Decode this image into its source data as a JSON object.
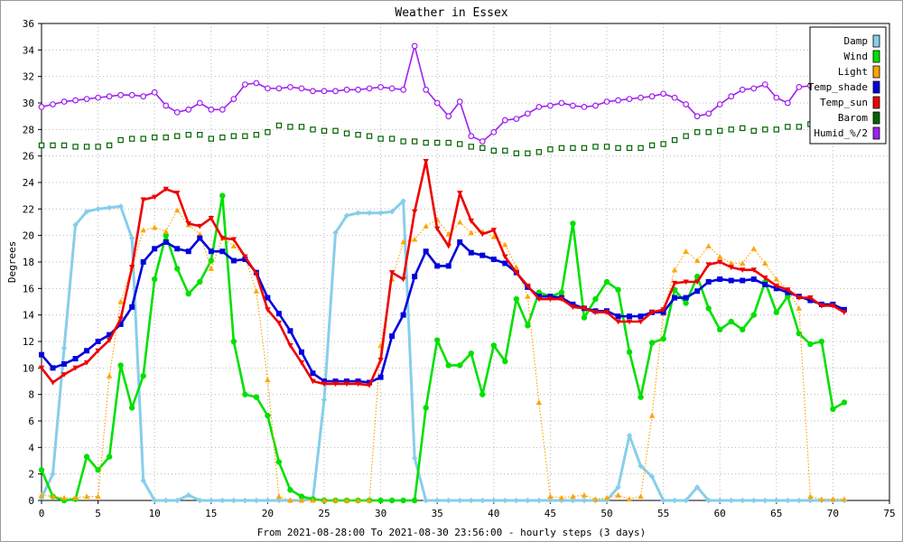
{
  "chart_data": {
    "type": "line",
    "title": "Weather in Essex",
    "xlabel": "From 2021-08-28:00 To 2021-08-30 23:56:00 - hourly steps (3 days)",
    "ylabel": "Degrees",
    "xlim": [
      0,
      75
    ],
    "ylim": [
      0,
      36
    ],
    "xticks": [
      0,
      5,
      10,
      15,
      20,
      25,
      30,
      35,
      40,
      45,
      50,
      55,
      60,
      65,
      70,
      75
    ],
    "yticks": [
      0,
      2,
      4,
      6,
      8,
      10,
      12,
      14,
      16,
      18,
      20,
      22,
      24,
      26,
      28,
      30,
      32,
      34,
      36
    ],
    "grid": true,
    "legend_position": "top-right",
    "series": [
      {
        "name": "Damp",
        "color": "#87ceeb",
        "marker": "diamond",
        "values": [
          0.2,
          2,
          11.5,
          20.8,
          21.8,
          22,
          22.1,
          22.2,
          19.8,
          1.5,
          0,
          0,
          0,
          0.4,
          0,
          0,
          0,
          0,
          0,
          0,
          0,
          0,
          0,
          0,
          0.1,
          7.6,
          20.2,
          21.5,
          21.7,
          21.7,
          21.7,
          21.8,
          22.6,
          3.2,
          0,
          0,
          0,
          0,
          0,
          0,
          0,
          0,
          0,
          0,
          0,
          0,
          0,
          0,
          0,
          0,
          0,
          1,
          4.9,
          2.6,
          1.8,
          0,
          0,
          0,
          1,
          0,
          0,
          0,
          0,
          0,
          0,
          0,
          0,
          0,
          0,
          0,
          0,
          0
        ]
      },
      {
        "name": "Wind",
        "color": "#00e000",
        "marker": "circle",
        "values": [
          2.3,
          0.3,
          0,
          0.1,
          3.3,
          2.3,
          3.3,
          10.2,
          7,
          9.4,
          16.7,
          20,
          17.5,
          15.6,
          16.5,
          18.1,
          23,
          12,
          8,
          7.8,
          6.4,
          2.9,
          0.8,
          0.3,
          0.1,
          0,
          0,
          0,
          0,
          0,
          0,
          0,
          0,
          0,
          7,
          12.1,
          10.2,
          10.2,
          11.1,
          8,
          11.7,
          10.5,
          15.2,
          13.2,
          15.7,
          15.4,
          15.7,
          20.9,
          13.8,
          15.2,
          16.5,
          15.9,
          11.2,
          7.8,
          11.9,
          12.2,
          15.9,
          14.9,
          16.9,
          14.5,
          12.9,
          13.5,
          12.9,
          14,
          16.5,
          14.2,
          15.4,
          12.6,
          11.8,
          12,
          6.9,
          7.4
        ]
      },
      {
        "name": "Light",
        "color": "#ffa500",
        "marker": "triangle",
        "values": [
          0.4,
          0.3,
          0.2,
          0.2,
          0.3,
          0.3,
          9.4,
          15,
          17.6,
          20.4,
          20.6,
          20.3,
          21.9,
          20.8,
          20.1,
          17.5,
          19.8,
          19.2,
          18.4,
          15.8,
          9.1,
          0.3,
          0,
          0,
          0,
          0,
          0,
          0,
          0,
          0,
          11.7,
          16.7,
          19.5,
          19.7,
          20.7,
          21.2,
          20.1,
          21,
          20.2,
          20.3,
          19.9,
          19.3,
          17.6,
          15.4,
          7.4,
          0.3,
          0.2,
          0.3,
          0.4,
          0.1,
          0.2,
          0.4,
          0.1,
          0.3,
          6.4,
          14.1,
          17.4,
          18.8,
          18.1,
          19.2,
          18.4,
          17.9,
          17.9,
          19,
          17.9,
          16.7,
          15.9,
          14.5,
          0.3,
          0.1,
          0.1,
          0.1
        ]
      },
      {
        "name": "Temp_shade",
        "color": "#0000dd",
        "marker": "square",
        "values": [
          11,
          10,
          10.3,
          10.7,
          11.3,
          12,
          12.5,
          13.3,
          14.6,
          18,
          19,
          19.5,
          19,
          18.8,
          19.8,
          18.8,
          18.8,
          18.1,
          18.2,
          17.2,
          15.3,
          14.1,
          12.8,
          11.2,
          9.6,
          9,
          9,
          9,
          9,
          8.9,
          9.3,
          12.4,
          14,
          16.9,
          18.8,
          17.7,
          17.7,
          19.5,
          18.7,
          18.5,
          18.2,
          17.9,
          17.2,
          16.1,
          15.4,
          15.4,
          15.3,
          14.8,
          14.5,
          14.3,
          14.3,
          13.9,
          13.9,
          13.9,
          14.2,
          14.2,
          15.3,
          15.3,
          15.8,
          16.5,
          16.7,
          16.6,
          16.6,
          16.7,
          16.3,
          16,
          15.7,
          15.4,
          15.1,
          14.8,
          14.8,
          14.4
        ]
      },
      {
        "name": "Temp_sun",
        "color": "#ee0000",
        "marker": "triangle-down",
        "values": [
          10,
          8.9,
          9.5,
          10,
          10.4,
          11.3,
          12.1,
          13.7,
          17.6,
          22.7,
          22.9,
          23.5,
          23.2,
          20.9,
          20.7,
          21.3,
          19.8,
          19.7,
          18.4,
          17.1,
          14.4,
          13.4,
          11.7,
          10.4,
          9,
          8.8,
          8.8,
          8.8,
          8.8,
          8.7,
          10.6,
          17.2,
          16.7,
          21.8,
          25.6,
          20.5,
          19.2,
          23.2,
          21.1,
          20.1,
          20.4,
          18.4,
          17.2,
          16.2,
          15.2,
          15.2,
          15.2,
          14.6,
          14.5,
          14.2,
          14.2,
          13.5,
          13.5,
          13.5,
          14.2,
          14.4,
          16.4,
          16.5,
          16.5,
          17.8,
          18,
          17.6,
          17.4,
          17.4,
          16.8,
          16.2,
          15.9,
          15.3,
          15.3,
          14.7,
          14.7,
          14.2
        ]
      },
      {
        "name": "Barom",
        "color": "#006400",
        "marker": "square-open",
        "values": [
          26.8,
          26.8,
          26.8,
          26.7,
          26.7,
          26.7,
          26.8,
          27.2,
          27.3,
          27.3,
          27.4,
          27.4,
          27.5,
          27.6,
          27.6,
          27.3,
          27.4,
          27.5,
          27.5,
          27.6,
          27.8,
          28.3,
          28.2,
          28.2,
          28,
          27.9,
          27.9,
          27.7,
          27.6,
          27.5,
          27.3,
          27.3,
          27.1,
          27.1,
          27,
          27,
          27,
          26.9,
          26.7,
          26.6,
          26.4,
          26.4,
          26.2,
          26.2,
          26.3,
          26.5,
          26.6,
          26.6,
          26.6,
          26.7,
          26.7,
          26.6,
          26.6,
          26.6,
          26.8,
          26.9,
          27.2,
          27.5,
          27.8,
          27.8,
          27.9,
          28,
          28.1,
          27.9,
          28,
          28,
          28.2,
          28.2,
          28.4,
          28.4,
          28.4,
          28.4
        ]
      },
      {
        "name": "Humid_%/2",
        "color": "#a020f0",
        "marker": "circle-open",
        "values": [
          29.7,
          29.9,
          30.1,
          30.2,
          30.3,
          30.4,
          30.5,
          30.6,
          30.6,
          30.5,
          30.8,
          29.8,
          29.3,
          29.5,
          30,
          29.5,
          29.5,
          30.3,
          31.4,
          31.5,
          31.1,
          31.1,
          31.2,
          31.1,
          30.9,
          30.9,
          30.9,
          31,
          31,
          31.1,
          31.2,
          31.1,
          31,
          34.3,
          31,
          30,
          29,
          30.1,
          27.5,
          27.1,
          27.8,
          28.7,
          28.8,
          29.2,
          29.7,
          29.8,
          30,
          29.8,
          29.7,
          29.8,
          30.1,
          30.2,
          30.3,
          30.4,
          30.5,
          30.7,
          30.4,
          29.9,
          29,
          29.2,
          29.9,
          30.5,
          31,
          31.1,
          31.4,
          30.4,
          30,
          31.2,
          31.3,
          31.6,
          31.9,
          31.9
        ]
      }
    ]
  }
}
